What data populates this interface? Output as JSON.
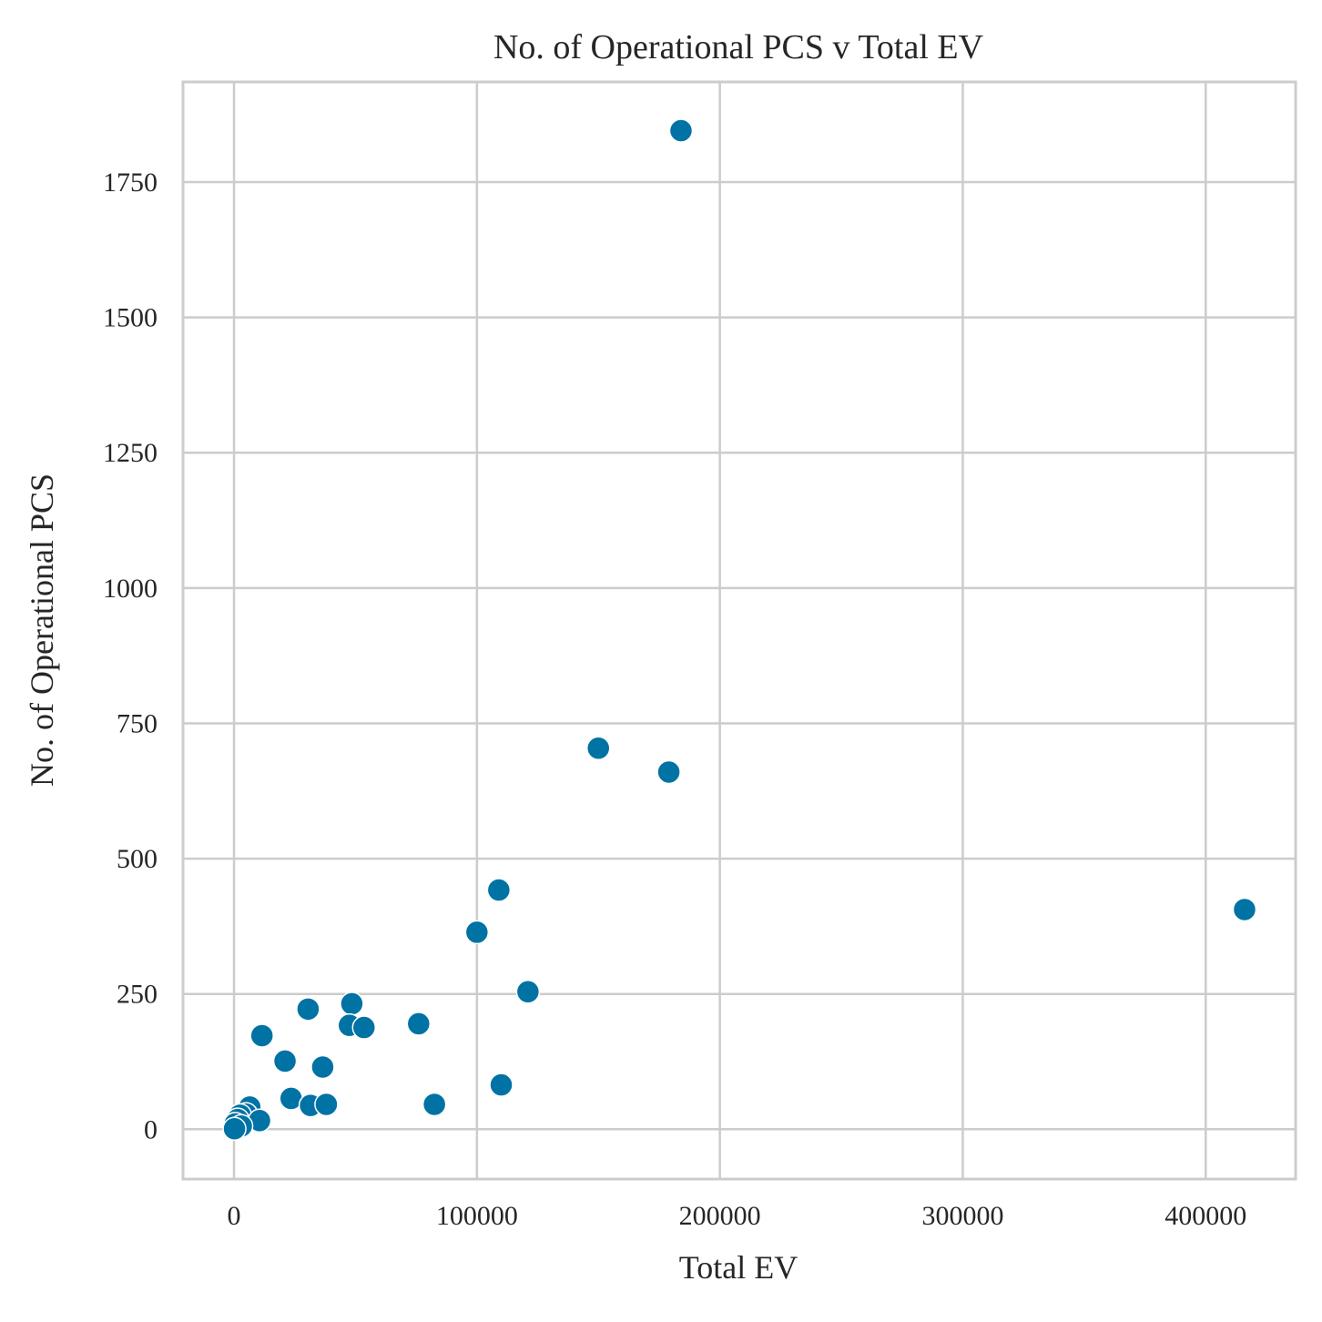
{
  "chart_data": {
    "type": "scatter",
    "title": "No. of Operational PCS v Total EV",
    "xlabel": "Total EV",
    "ylabel": "No. of Operational PCS",
    "xlim": [
      -21000,
      437000
    ],
    "ylim": [
      -92,
      1935
    ],
    "xticks": [
      0,
      100000,
      200000,
      300000,
      400000
    ],
    "xtick_labels": [
      "0",
      "100000",
      "200000",
      "300000",
      "400000"
    ],
    "yticks": [
      0,
      250,
      500,
      750,
      1000,
      1250,
      1500,
      1750
    ],
    "ytick_labels": [
      "0",
      "250",
      "500",
      "750",
      "1000",
      "1250",
      "1500",
      "1750"
    ],
    "grid": true,
    "marker_color": "#0072a3",
    "points": [
      {
        "x": 184000,
        "y": 1845
      },
      {
        "x": 150000,
        "y": 704
      },
      {
        "x": 179000,
        "y": 660
      },
      {
        "x": 109000,
        "y": 442
      },
      {
        "x": 416000,
        "y": 406
      },
      {
        "x": 100000,
        "y": 364
      },
      {
        "x": 121000,
        "y": 254
      },
      {
        "x": 48500,
        "y": 232
      },
      {
        "x": 30500,
        "y": 222
      },
      {
        "x": 47500,
        "y": 192
      },
      {
        "x": 53500,
        "y": 188
      },
      {
        "x": 76000,
        "y": 195
      },
      {
        "x": 11500,
        "y": 173
      },
      {
        "x": 21000,
        "y": 126
      },
      {
        "x": 36500,
        "y": 115
      },
      {
        "x": 110000,
        "y": 82
      },
      {
        "x": 23500,
        "y": 57
      },
      {
        "x": 31500,
        "y": 44
      },
      {
        "x": 38000,
        "y": 46
      },
      {
        "x": 82500,
        "y": 46
      },
      {
        "x": 6500,
        "y": 41
      },
      {
        "x": 5000,
        "y": 28
      },
      {
        "x": 2500,
        "y": 26
      },
      {
        "x": 10500,
        "y": 16
      },
      {
        "x": 1500,
        "y": 18
      },
      {
        "x": 500,
        "y": 10
      },
      {
        "x": 3000,
        "y": 6
      },
      {
        "x": 200,
        "y": 1
      }
    ]
  }
}
